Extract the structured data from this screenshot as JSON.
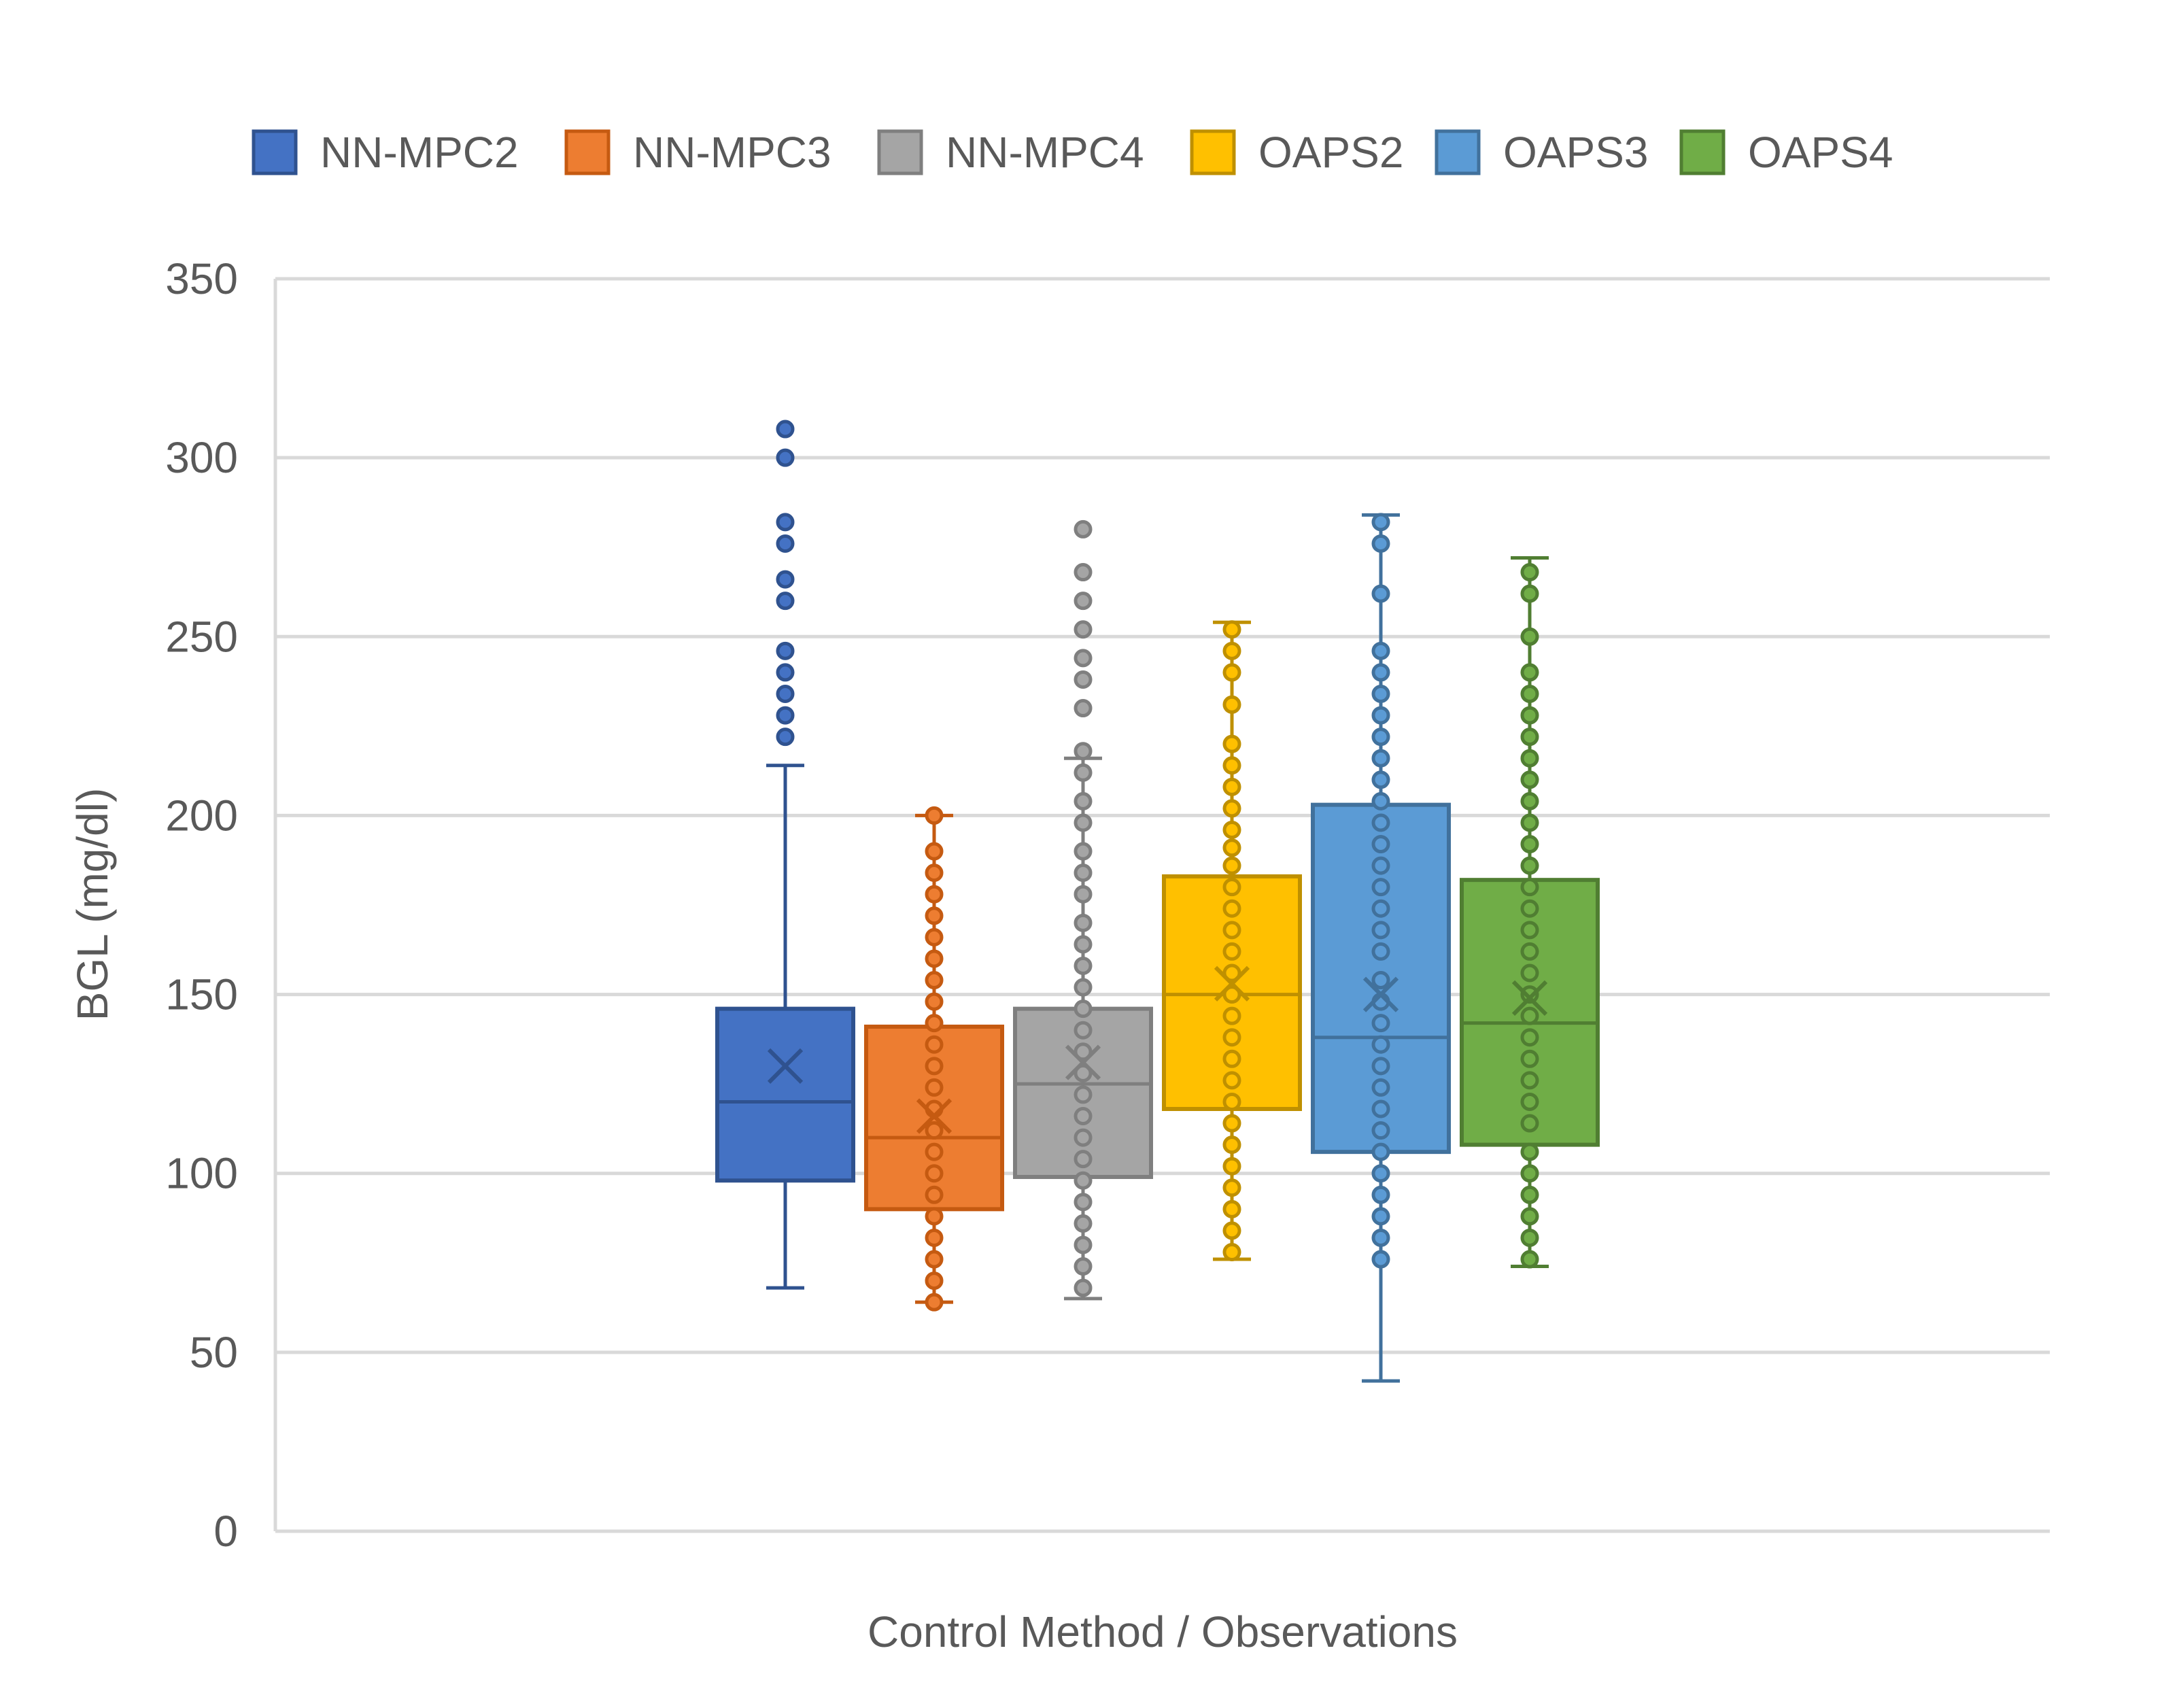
{
  "chart_data": {
    "type": "box",
    "title": "",
    "xlabel": "Control Method / Observations",
    "ylabel": "BGL (mg/dl)",
    "ylim": [
      0,
      350
    ],
    "yticks": [
      0,
      50,
      100,
      150,
      200,
      250,
      300,
      350
    ],
    "grid": true,
    "legend_position": "top",
    "series": [
      {
        "name": "NN-MPC2",
        "color": "#4472C4",
        "stroke": "#2F528F",
        "min": 68,
        "q1": 98,
        "median": 120,
        "q3": 146,
        "max": 214,
        "mean": 130,
        "points": [
          222,
          228,
          234,
          240,
          246,
          260,
          266,
          276,
          282,
          300,
          308
        ]
      },
      {
        "name": "NN-MPC3",
        "color": "#ED7D31",
        "stroke": "#C55A11",
        "min": 64,
        "q1": 90,
        "median": 110,
        "q3": 141,
        "max": 200,
        "mean": 116,
        "points": [
          64,
          70,
          76,
          82,
          88,
          94,
          100,
          106,
          112,
          118,
          124,
          130,
          136,
          142,
          148,
          154,
          160,
          166,
          172,
          178,
          184,
          190,
          200
        ]
      },
      {
        "name": "NN-MPC4",
        "color": "#A5A5A5",
        "stroke": "#7F7F7F",
        "min": 65,
        "q1": 99,
        "median": 125,
        "q3": 146,
        "max": 216,
        "mean": 131,
        "points": [
          68,
          74,
          80,
          86,
          92,
          98,
          104,
          110,
          116,
          122,
          128,
          134,
          140,
          146,
          152,
          158,
          164,
          170,
          178,
          184,
          190,
          198,
          204,
          212,
          218,
          230,
          238,
          244,
          252,
          260,
          268,
          280
        ]
      },
      {
        "name": "OAPS2",
        "color": "#FFC000",
        "stroke": "#BF9000",
        "min": 76,
        "q1": 118,
        "median": 150,
        "q3": 183,
        "max": 254,
        "mean": 153,
        "points": [
          78,
          84,
          90,
          96,
          102,
          108,
          114,
          120,
          126,
          132,
          138,
          144,
          150,
          156,
          162,
          168,
          174,
          180,
          186,
          191,
          196,
          202,
          208,
          214,
          220,
          231,
          240,
          246,
          252
        ]
      },
      {
        "name": "OAPS3",
        "color": "#5B9BD5",
        "stroke": "#41719C",
        "min": 42,
        "q1": 106,
        "median": 138,
        "q3": 203,
        "max": 284,
        "mean": 150,
        "points": [
          76,
          82,
          88,
          94,
          100,
          106,
          112,
          118,
          124,
          130,
          136,
          142,
          148,
          154,
          162,
          168,
          174,
          180,
          186,
          192,
          198,
          204,
          210,
          216,
          222,
          228,
          234,
          240,
          246,
          262,
          276,
          282
        ]
      },
      {
        "name": "OAPS4",
        "color": "#70AD47",
        "stroke": "#507E32",
        "min": 74,
        "q1": 108,
        "median": 142,
        "q3": 182,
        "max": 272,
        "mean": 149,
        "points": [
          76,
          82,
          88,
          94,
          100,
          106,
          114,
          120,
          126,
          132,
          138,
          144,
          150,
          156,
          162,
          168,
          174,
          180,
          186,
          192,
          198,
          204,
          210,
          216,
          222,
          228,
          234,
          240,
          250,
          262,
          268
        ]
      }
    ]
  }
}
